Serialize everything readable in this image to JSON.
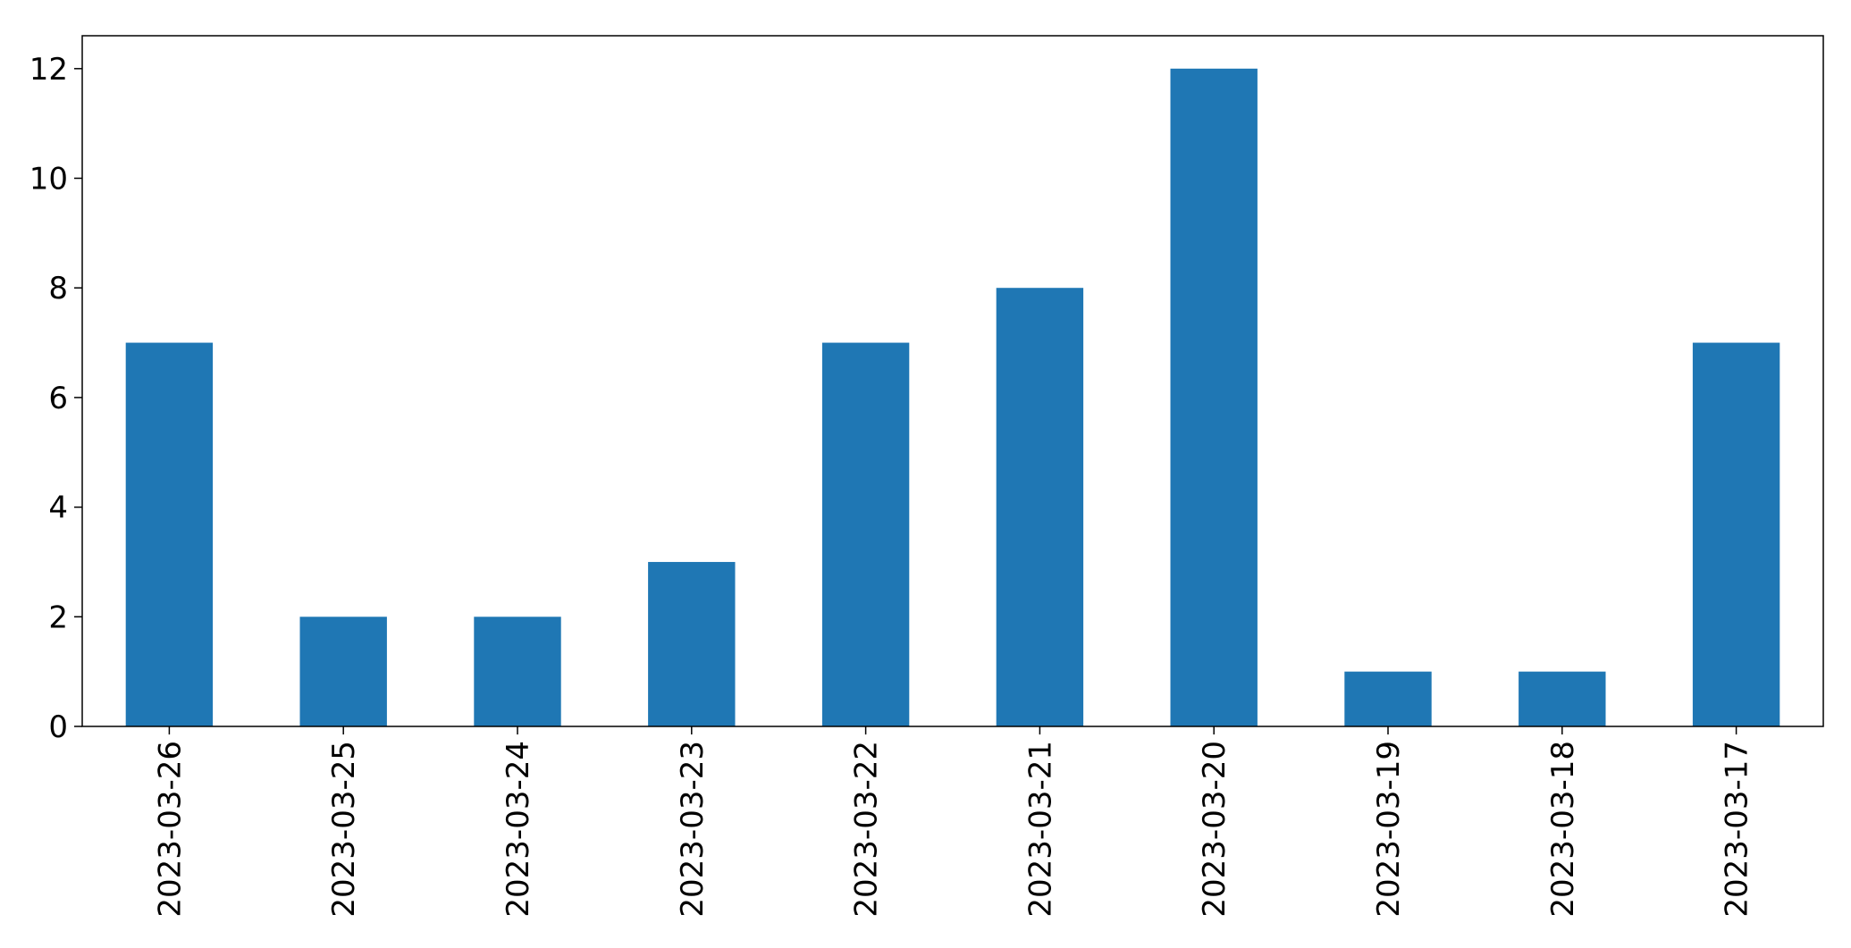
{
  "chart_data": {
    "type": "bar",
    "title": "",
    "xlabel": "",
    "ylabel": "",
    "categories": [
      "2023-03-26",
      "2023-03-25",
      "2023-03-24",
      "2023-03-23",
      "2023-03-22",
      "2023-03-21",
      "2023-03-20",
      "2023-03-19",
      "2023-03-18",
      "2023-03-17"
    ],
    "values": [
      7,
      2,
      2,
      3,
      7,
      8,
      12,
      1,
      1,
      7
    ],
    "ylim": [
      0,
      12.6
    ],
    "yticks": [
      0,
      2,
      4,
      6,
      8,
      10,
      12
    ],
    "grid": false,
    "legend": "none",
    "bar_color": "#1f77b4"
  }
}
